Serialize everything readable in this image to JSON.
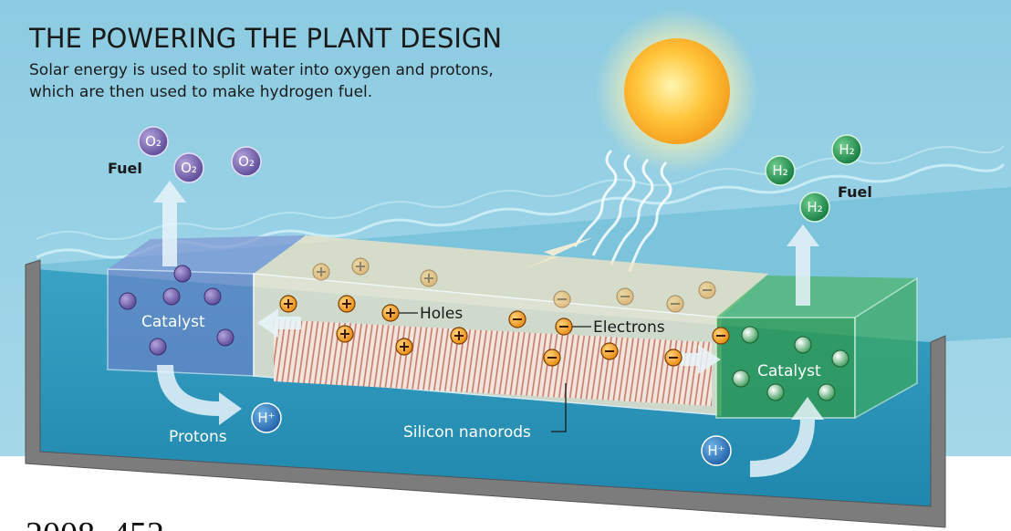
{
  "header": {
    "title": "THE POWERING THE PLANT DESIGN",
    "subtitle_lines": [
      "Solar energy is used to split water into oxygen and protons,",
      "which are then used to make hydrogen fuel."
    ]
  },
  "labels": {
    "fuel_left": "Fuel",
    "catalyst_left": "Catalyst",
    "holes": "Holes",
    "electrons": "Electrons",
    "protons": "Protons",
    "silicon_nanorods": "Silicon nanorods",
    "catalyst_right": "Catalyst",
    "fuel_right": "Fuel"
  },
  "molecules": {
    "oxygen": [
      "O₂",
      "O₂",
      "O₂"
    ],
    "hydrogen": [
      "H₂",
      "H₂",
      "H₂"
    ],
    "protons": [
      "H⁺",
      "H⁺"
    ]
  },
  "footer": "2008, 452"
}
